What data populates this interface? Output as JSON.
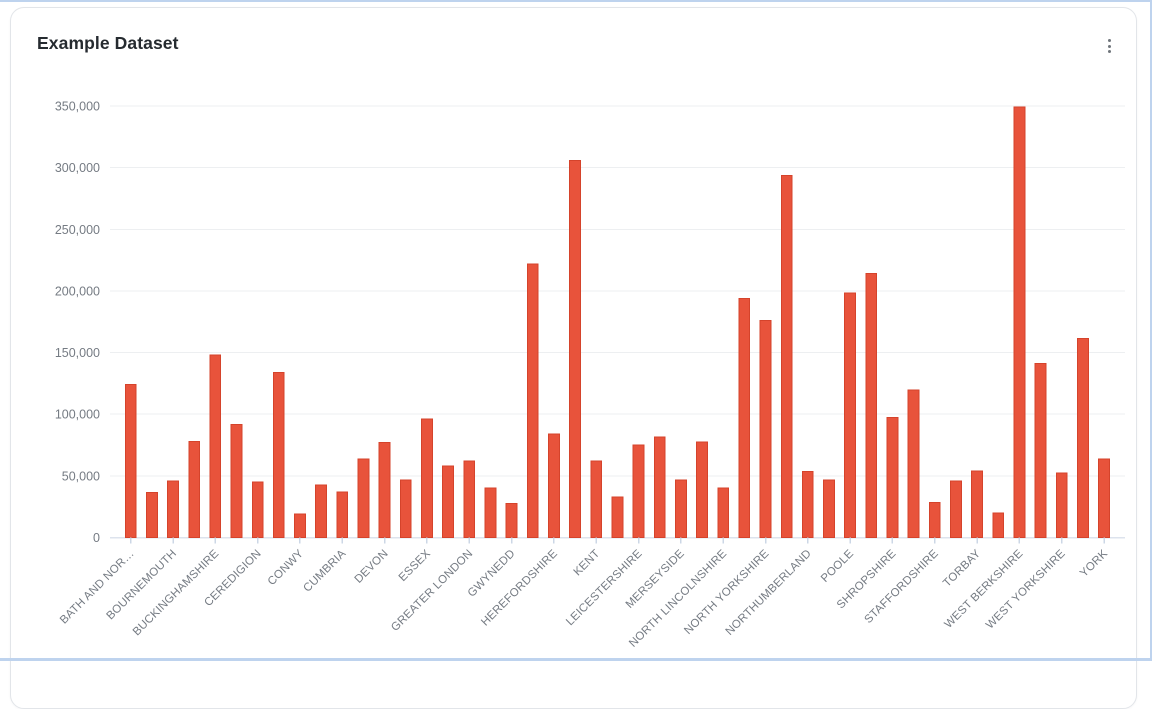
{
  "card": {
    "title": "Example Dataset",
    "menu_icon": "kebab-vertical"
  },
  "chart_data": {
    "type": "bar",
    "title": "Example Dataset",
    "legend": "none",
    "grid": true,
    "ylim": [
      0,
      350000
    ],
    "y_ticks": {
      "values": [
        0,
        50000,
        100000,
        150000,
        200000,
        250000,
        300000,
        350000
      ],
      "labels": [
        "0",
        "50,000",
        "100,000",
        "150,000",
        "200,000",
        "250,000",
        "300,000",
        "350,000"
      ]
    },
    "x_tick_labels": [
      "BATH AND NOR…",
      "BOURNEMOUTH",
      "BUCKINGHAMSHIRE",
      "CEREDIGION",
      "CONWY",
      "CUMBRIA",
      "DEVON",
      "ESSEX",
      "GREATER LONDON",
      "GWYNEDD",
      "HEREFORDSHIRE",
      "KENT",
      "LEICESTERSHIRE",
      "MERSEYSIDE",
      "NORTH LINCOLNSHIRE",
      "NORTH YORKSHIRE",
      "NORTHUMBERLAND",
      "POOLE",
      "SHROPSHIRE",
      "STAFFORDSHIRE",
      "TORBAY",
      "WEST BERKSHIRE",
      "WEST YORKSHIRE",
      "YORK"
    ],
    "label_every": 2,
    "series": [
      {
        "name": "Example Dataset",
        "values": [
          124000,
          36500,
          46000,
          78000,
          148000,
          91500,
          45000,
          134000,
          19000,
          42500,
          37000,
          63500,
          77000,
          46500,
          96000,
          58000,
          62000,
          40000,
          27500,
          222000,
          84000,
          306000,
          62000,
          33000,
          75000,
          81500,
          46500,
          77500,
          40000,
          194000,
          176000,
          293500,
          53500,
          46500,
          198500,
          214000,
          97500,
          119500,
          28500,
          46000,
          54000,
          20000,
          349000,
          141000,
          52500,
          161500,
          63500
        ]
      }
    ],
    "bar_color": "#e8533b",
    "bar_border_color": "#d5432b",
    "gridline_color": "#edeff1",
    "axis_line_color": "#dde3ed",
    "tick_color": "#ccd7e6",
    "label_color": "#757b83"
  }
}
